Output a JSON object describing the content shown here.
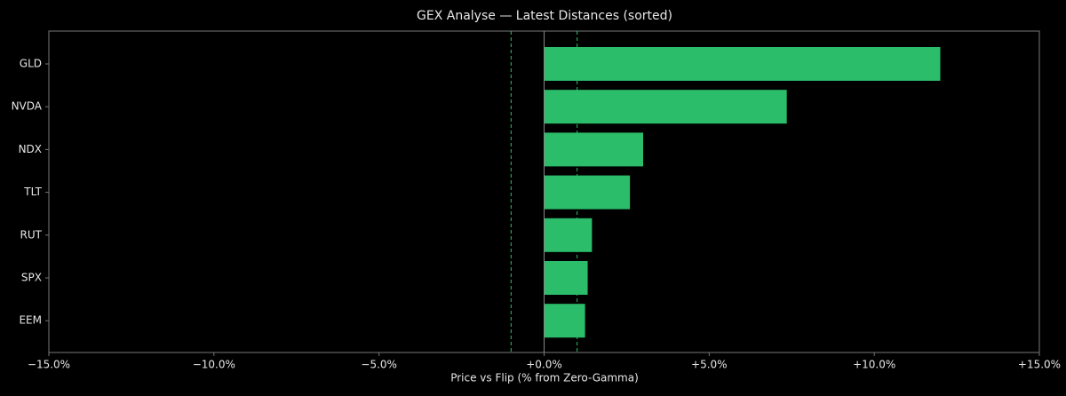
{
  "chart_data": {
    "type": "barh",
    "title": "GEX Analyse — Latest Distances (sorted)",
    "xlabel": "Price vs Flip (% from Zero-Gamma)",
    "categories": [
      "GLD",
      "NVDA",
      "NDX",
      "TLT",
      "RUT",
      "SPX",
      "EEM"
    ],
    "values": [
      12.0,
      7.35,
      3.0,
      2.6,
      1.45,
      1.32,
      1.24
    ],
    "color": "#2bbd6a",
    "xlim": [
      -15,
      15
    ],
    "xticks": [
      {
        "value": -15,
        "label": "−15.0%"
      },
      {
        "value": -10,
        "label": "−10.0%"
      },
      {
        "value": -5,
        "label": "−5.0%"
      },
      {
        "value": 0,
        "label": "+0.0%"
      },
      {
        "value": 5,
        "label": "+5.0%"
      },
      {
        "value": 10,
        "label": "+10.0%"
      },
      {
        "value": 15,
        "label": "+15.0%"
      }
    ],
    "reference_lines": [
      -1,
      1
    ],
    "reference_color": "#2bbd6a",
    "zero_line_color": "#888888"
  }
}
